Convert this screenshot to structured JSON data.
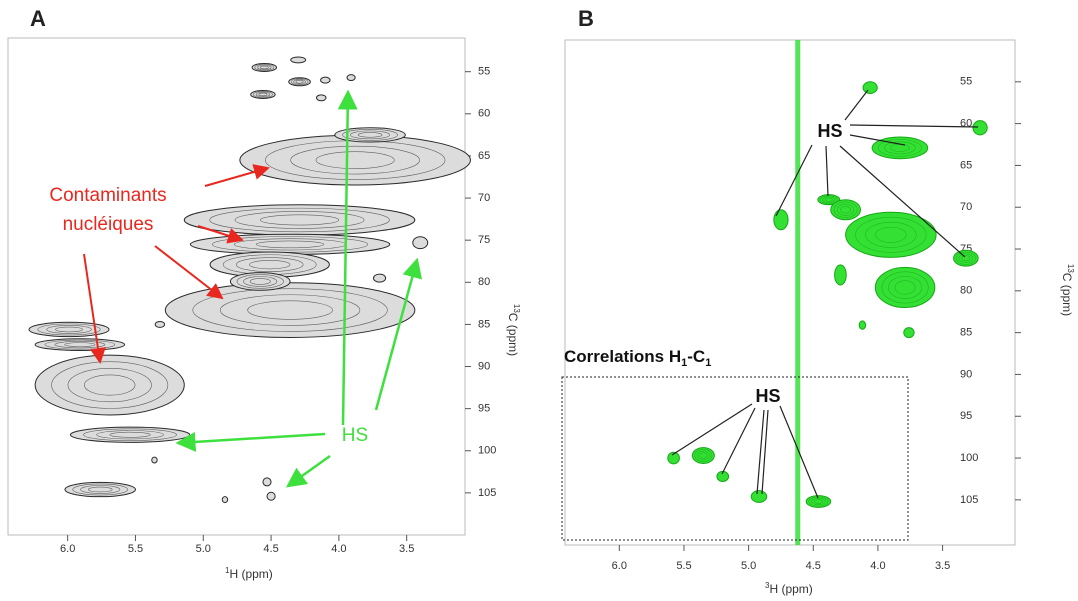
{
  "chart_data": [
    {
      "type": "contour",
      "panel": "A",
      "xlabel_sup": "1",
      "xlabel": "H (ppm)",
      "ylabel_sup": "13",
      "ylabel": "C (ppm)",
      "xlim": [
        6.44,
        3.07
      ],
      "ylim": [
        51,
        110
      ],
      "xticks": [
        {
          "value": 6,
          "label": "6.0"
        },
        5.5,
        {
          "value": 5,
          "label": "5.0"
        },
        4.5,
        {
          "value": 4,
          "label": "4.0"
        },
        3.5
      ],
      "yticks": [
        55,
        60,
        65,
        70,
        75,
        80,
        85,
        90,
        95,
        100,
        105
      ],
      "fill": "#dcdcdc",
      "stroke": "#2a2a2a",
      "peaks": {
        "x": [
          4.55,
          4.3,
          4.29,
          4.56,
          4.1,
          4.13,
          3.91,
          3.88,
          3.77,
          4.29,
          4.36,
          4.51,
          4.36,
          4.58,
          5.99,
          5.91,
          5.69,
          5.54,
          5.76,
          3.4,
          3.7,
          5.32,
          4.53,
          4.5,
          4.84,
          5.36
        ],
        "y": [
          54.5,
          53.6,
          56.2,
          57.7,
          56.0,
          58.1,
          55.7,
          65.5,
          62.5,
          72.6,
          75.5,
          77.9,
          83.3,
          79.9,
          85.6,
          87.4,
          92.2,
          98.1,
          104.6,
          75.3,
          79.5,
          85.0,
          103.7,
          105.4,
          105.8,
          101.1
        ],
        "x_width": [
          0.18,
          0.11,
          0.16,
          0.18,
          0.07,
          0.07,
          0.06,
          1.7,
          0.52,
          1.7,
          1.47,
          0.88,
          1.84,
          0.44,
          0.59,
          0.66,
          1.1,
          0.88,
          0.52,
          0.11,
          0.09,
          0.07,
          0.06,
          0.06,
          0.04,
          0.04
        ],
        "y_width": [
          0.95,
          0.7,
          0.95,
          0.95,
          0.7,
          0.7,
          0.7,
          5.9,
          1.7,
          3.6,
          2.4,
          3.0,
          6.5,
          2.1,
          1.7,
          1.4,
          7.1,
          1.8,
          1.7,
          1.4,
          0.95,
          0.7,
          0.95,
          0.95,
          0.7,
          0.7
        ]
      },
      "annotations": [
        "Contaminants",
        "nucléiques",
        "HS"
      ]
    },
    {
      "type": "contour",
      "panel": "B",
      "xlabel_sup": "3",
      "xlabel": "H (ppm)",
      "ylabel_sup": "13",
      "ylabel": "C (ppm)",
      "xlim": [
        6.42,
        2.94
      ],
      "ylim": [
        50,
        110.4
      ],
      "xticks": [
        {
          "value": 6,
          "label": "6.0"
        },
        5.5,
        {
          "value": 5,
          "label": "5.0"
        },
        4.5,
        {
          "value": 4,
          "label": "4.0"
        },
        3.5
      ],
      "yticks": [
        55,
        60,
        65,
        70,
        75,
        80,
        85,
        90,
        95,
        100,
        105
      ],
      "fill": "#35e035",
      "stroke": "#14a814",
      "solvent_x": 4.62,
      "peaks": {
        "x": [
          4.06,
          3.21,
          3.83,
          4.38,
          3.9,
          4.25,
          3.32,
          3.79,
          4.29,
          4.75,
          4.12,
          3.76,
          5.58,
          5.35,
          5.2,
          4.92,
          4.46
        ],
        "y": [
          55.7,
          60.5,
          62.9,
          69.1,
          73.3,
          70.3,
          76.1,
          79.6,
          78.1,
          71.5,
          84.1,
          85.0,
          100.0,
          99.7,
          102.2,
          104.6,
          105.2
        ],
        "x_width": [
          0.11,
          0.11,
          0.43,
          0.17,
          0.7,
          0.23,
          0.19,
          0.46,
          0.09,
          0.11,
          0.05,
          0.08,
          0.09,
          0.17,
          0.09,
          0.12,
          0.19
        ],
        "y_width": [
          1.4,
          1.7,
          2.6,
          1.2,
          5.4,
          2.4,
          1.9,
          4.8,
          2.4,
          2.4,
          1.0,
          1.2,
          1.4,
          1.9,
          1.2,
          1.4,
          1.4
        ]
      },
      "annotations": [
        "HS",
        "HS"
      ],
      "box_label": [
        "Correlations H",
        "1",
        "-C",
        "1"
      ]
    }
  ]
}
